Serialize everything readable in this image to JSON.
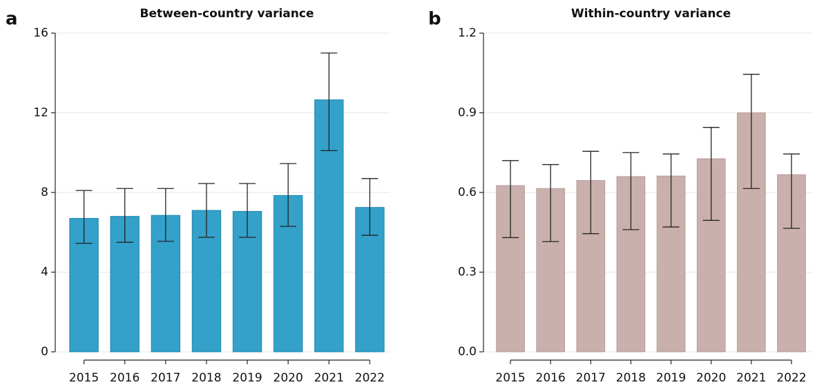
{
  "chart_data": [
    {
      "type": "bar",
      "panel_label": "a",
      "title": "Between-country variance",
      "categories": [
        "2015",
        "2016",
        "2017",
        "2018",
        "2019",
        "2020",
        "2021",
        "2022"
      ],
      "values": [
        6.7,
        6.8,
        6.85,
        7.1,
        7.05,
        7.85,
        12.65,
        7.25
      ],
      "lower": [
        5.45,
        5.5,
        5.55,
        5.75,
        5.75,
        6.3,
        10.1,
        5.85
      ],
      "upper": [
        8.1,
        8.2,
        8.2,
        8.45,
        8.45,
        9.45,
        15.0,
        8.7
      ],
      "color": "#33a1c9",
      "edge_color": "#1f87ad",
      "ylim": [
        0,
        16
      ],
      "yticks": [
        0,
        4,
        8,
        12,
        16
      ],
      "grid": true
    },
    {
      "type": "bar",
      "panel_label": "b",
      "title": "Within-country variance",
      "categories": [
        "2015",
        "2016",
        "2017",
        "2018",
        "2019",
        "2020",
        "2021",
        "2022"
      ],
      "values": [
        0.626,
        0.615,
        0.645,
        0.66,
        0.662,
        0.727,
        0.9,
        0.667
      ],
      "lower": [
        0.43,
        0.415,
        0.445,
        0.46,
        0.47,
        0.495,
        0.615,
        0.465
      ],
      "upper": [
        0.72,
        0.705,
        0.755,
        0.75,
        0.745,
        0.845,
        1.045,
        0.745
      ],
      "color": "#c9b0ad",
      "edge_color": "#b89d99",
      "ylim": [
        0,
        1.2
      ],
      "yticks": [
        {
          "value": 0,
          "label": "0.0"
        },
        0.3,
        0.6,
        0.9,
        1.2
      ],
      "grid": true
    }
  ]
}
